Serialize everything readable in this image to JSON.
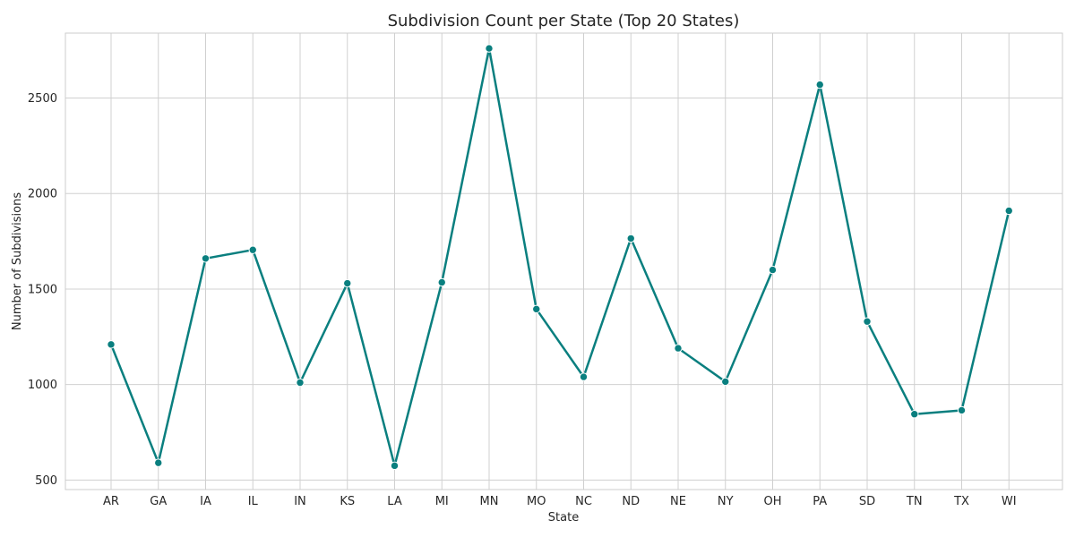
{
  "chart_data": {
    "type": "line",
    "title": "Subdivision Count per State (Top 20 States)",
    "xlabel": "State",
    "ylabel": "Number of Subdivisions",
    "categories": [
      "AR",
      "GA",
      "IA",
      "IL",
      "IN",
      "KS",
      "LA",
      "MI",
      "MN",
      "MO",
      "NC",
      "ND",
      "NE",
      "NY",
      "OH",
      "PA",
      "SD",
      "TN",
      "TX",
      "WI"
    ],
    "series": [
      {
        "values": [
          1210,
          590,
          1660,
          1705,
          1010,
          1530,
          575,
          1535,
          2760,
          1395,
          1040,
          1765,
          1190,
          1015,
          1600,
          2570,
          1330,
          845,
          865,
          1910
        ],
        "color": "#0a7f7f"
      }
    ],
    "ylim": [
      450,
      2840
    ],
    "yticks": [
      500,
      1000,
      1500,
      2000,
      2500
    ],
    "ytick_labels": [
      "500",
      "1000",
      "1500",
      "2000",
      "2500"
    ],
    "grid": true,
    "marker": "circle"
  }
}
